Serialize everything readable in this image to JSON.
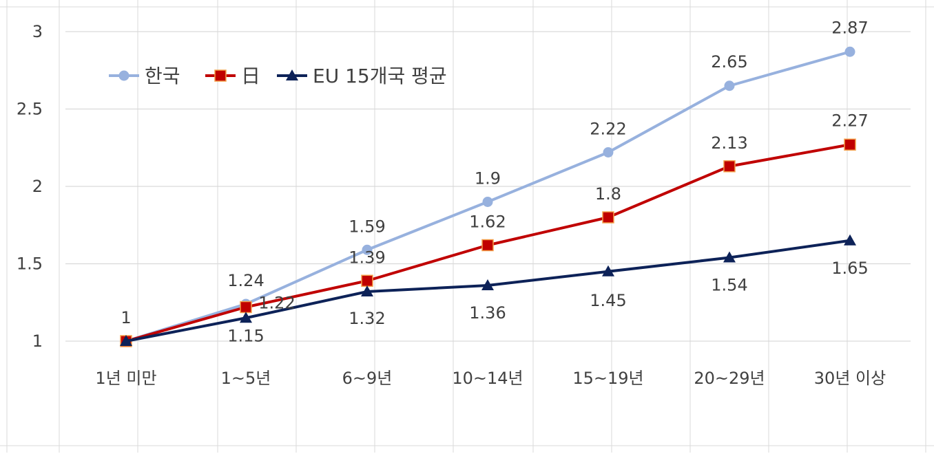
{
  "chart_data": {
    "type": "line",
    "title": "",
    "xlabel": "",
    "ylabel": "",
    "categories": [
      "1년 미만",
      "1~5년",
      "6~9년",
      "10~14년",
      "15~19년",
      "20~29년",
      "30년 이상"
    ],
    "ylim": [
      1,
      3
    ],
    "yticks": [
      "1",
      "1.5",
      "2",
      "2.5",
      "3"
    ],
    "grid": true,
    "legend_position": "top-left",
    "series": [
      {
        "name": "한국",
        "color": "#97b1de",
        "marker": "circle",
        "values": [
          1,
          1.24,
          1.59,
          1.9,
          2.22,
          2.65,
          2.87
        ],
        "labels": [
          "1",
          "1.24",
          "1.59",
          "1.9",
          "2.22",
          "2.65",
          "2.87"
        ]
      },
      {
        "name": "日",
        "color": "#c00000",
        "marker": "square",
        "values": [
          1,
          1.22,
          1.39,
          1.62,
          1.8,
          2.13,
          2.27
        ],
        "labels": [
          "",
          "1.22",
          "1.39",
          "1.62",
          "1.8",
          "2.13",
          "2.27"
        ]
      },
      {
        "name": "EU 15개국 평균",
        "color": "#0d2258",
        "marker": "triangle",
        "values": [
          1,
          1.15,
          1.32,
          1.36,
          1.45,
          1.54,
          1.65
        ],
        "labels": [
          "",
          "1.15",
          "1.32",
          "1.36",
          "1.45",
          "1.54",
          "1.65"
        ]
      }
    ]
  }
}
